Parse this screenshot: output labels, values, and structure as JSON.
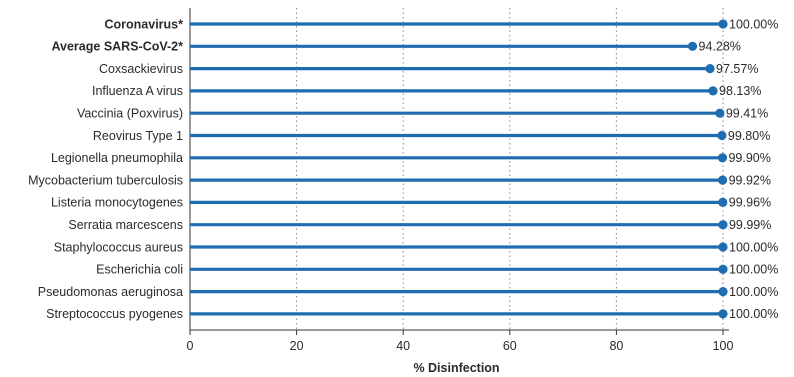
{
  "chart_data": {
    "type": "lollipop",
    "categories": [
      "Coronavirus*",
      "Average SARS-CoV-2*",
      "Coxsackievirus",
      "Influenza A virus",
      "Vaccinia (Poxvirus)",
      "Reovirus Type 1",
      "Legionella pneumophila",
      "Mycobacterium tuberculosis",
      "Listeria monocytogenes",
      "Serratia marcescens",
      "Staphylococcus aureus",
      "Escherichia coli",
      "Pseudomonas aeruginosa",
      "Streptococcus pyogenes"
    ],
    "bold_categories": [
      "Coronavirus*",
      "Average SARS-CoV-2*"
    ],
    "values": [
      100.0,
      94.28,
      97.57,
      98.13,
      99.41,
      99.8,
      99.9,
      99.92,
      99.96,
      99.99,
      100.0,
      100.0,
      100.0,
      100.0
    ],
    "value_labels": [
      "100.00%",
      "94.28%",
      "97.57%",
      "98.13%",
      "99.41%",
      "99.80%",
      "99.90%",
      "99.92%",
      "99.96%",
      "99.99%",
      "100.00%",
      "100.00%",
      "100.00%",
      "100.00%"
    ],
    "xlabel": "% Disinfection",
    "xlim": [
      0,
      100
    ],
    "xticks": [
      0,
      20,
      40,
      60,
      80,
      100
    ],
    "grid": "vertical dotted",
    "color": "#1f6cb0"
  }
}
